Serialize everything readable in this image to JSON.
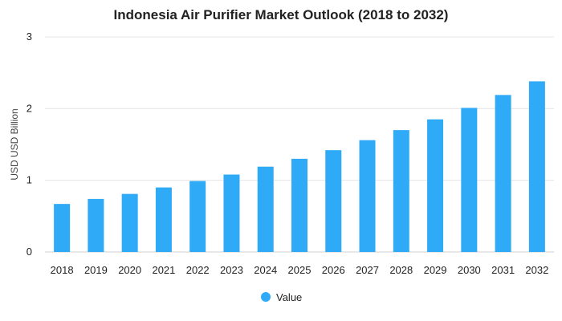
{
  "chart_data": {
    "type": "bar",
    "title": "Indonesia Air Purifier Market Outlook (2018 to 2032)",
    "xlabel": "",
    "ylabel": "USD USD Billion",
    "categories": [
      "2018",
      "2019",
      "2020",
      "2021",
      "2022",
      "2023",
      "2024",
      "2025",
      "2026",
      "2027",
      "2028",
      "2029",
      "2030",
      "2031",
      "2032"
    ],
    "series": [
      {
        "name": "Value",
        "color": "#2eaaf7",
        "values": [
          0.67,
          0.74,
          0.81,
          0.9,
          0.99,
          1.08,
          1.19,
          1.3,
          1.42,
          1.56,
          1.7,
          1.85,
          2.01,
          2.19,
          2.38
        ]
      }
    ],
    "ylim": [
      0,
      3
    ],
    "yticks": [
      "0",
      "1",
      "2",
      "3"
    ],
    "grid": true,
    "legend_position": "bottom-center"
  }
}
